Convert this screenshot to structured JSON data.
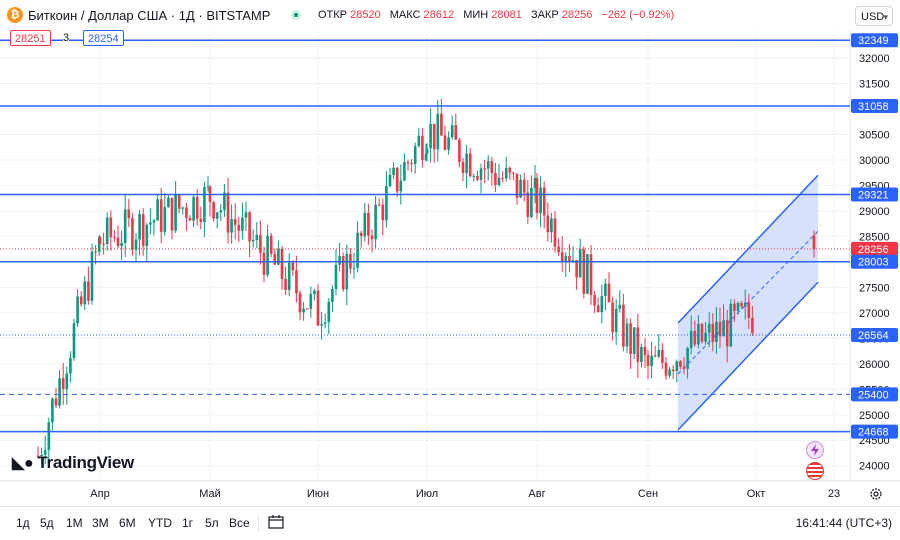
{
  "header": {
    "symbol_icon": "₿",
    "title": "Биткоин / Доллар США · 1Д · BITSTAMP",
    "open_label": "ОТКР",
    "open": "28520",
    "high_label": "МАКС",
    "high": "28612",
    "low_label": "МИН",
    "low": "28081",
    "close_label": "ЗАКР",
    "close": "28256",
    "change": "−262 (−0.92%)",
    "currency": "USD"
  },
  "trade": {
    "sell": "28251",
    "spread": "3",
    "buy": "28254"
  },
  "colors": {
    "up": "#089981",
    "down": "#f23645",
    "levels": "#2962ff",
    "channel_fill": "#c9d6fb"
  },
  "icons": [
    "live-status-icon",
    "lightning-icon",
    "flag-icon",
    "gear-icon",
    "calendar-icon",
    "chevron-down-icon",
    "tradingview-logo-icon"
  ],
  "logo": "TradingView",
  "bottom": {
    "ranges": [
      "1д",
      "5д",
      "1М",
      "3М",
      "6М",
      "YTD",
      "1г",
      "5л",
      "Все"
    ],
    "clock": "16:41:44 (UTC+3)"
  },
  "chart_data": {
    "type": "candlestick",
    "y_ticks": [
      24000,
      24500,
      25000,
      25500,
      26000,
      26500,
      27000,
      27500,
      28000,
      28500,
      29000,
      29500,
      30000,
      30500,
      31000,
      31500,
      32000
    ],
    "x_ticks": [
      "Апр",
      "Май",
      "Июн",
      "Июл",
      "Авг",
      "Сен",
      "Окт",
      "23"
    ],
    "ylim": [
      23700,
      32550
    ],
    "horizontal_levels": [
      32349,
      31058,
      29321,
      28003,
      24668
    ],
    "dotted_levels": [
      26564
    ],
    "dashed_levels": [
      25400
    ],
    "last_price": 28256,
    "price_labels": [
      "32349",
      "31058",
      "29321",
      "28256",
      "28003",
      "26564",
      "25400",
      "24668"
    ],
    "channel": {
      "start": "Сен",
      "end": "Окт",
      "upper": [
        26800,
        29700
      ],
      "middle": [
        25800,
        28600
      ],
      "lower": [
        24700,
        27600
      ]
    },
    "candles_monthly_path": [
      [
        "Мар",
        24200,
        27900
      ],
      [
        "Апр",
        28400,
        29300
      ],
      [
        "Май",
        29300,
        27200
      ],
      [
        "Июн",
        27000,
        30400
      ],
      [
        "Июл",
        30600,
        29200
      ],
      [
        "Авг",
        29200,
        25900
      ],
      [
        "Сен",
        25900,
        27000
      ],
      [
        "Окт",
        27000,
        28256
      ]
    ]
  }
}
